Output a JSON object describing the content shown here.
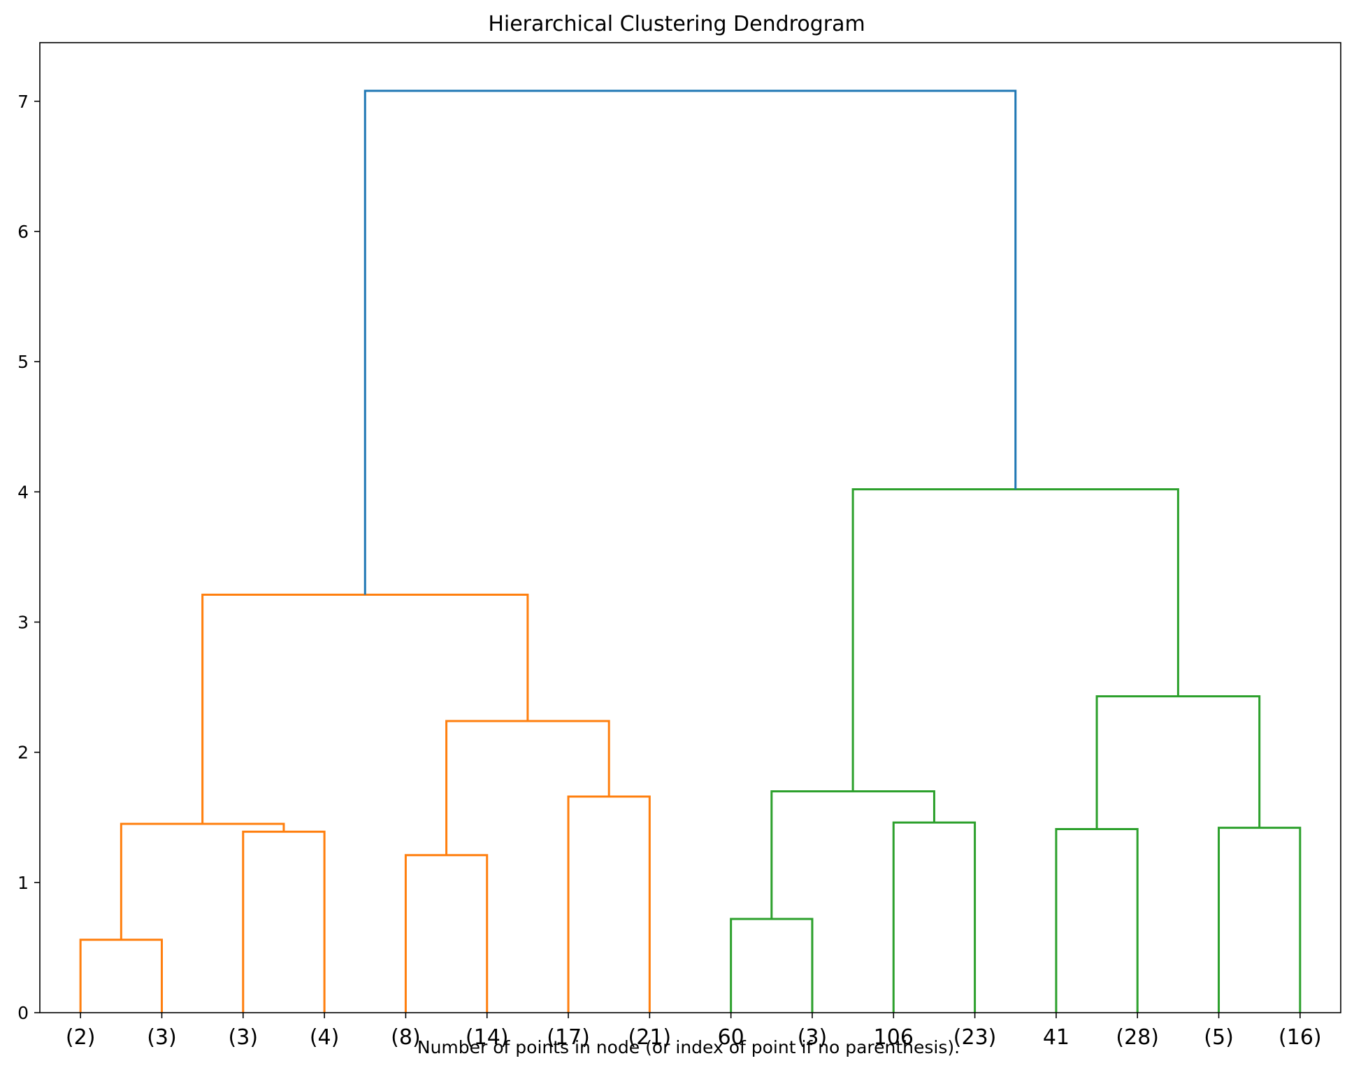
{
  "chart_data": {
    "type": "dendrogram",
    "title": "Hierarchical Clustering Dendrogram",
    "xlabel": "Number of points in node (or index of point if no parenthesis).",
    "ylabel": "",
    "ylim": [
      0,
      7.45
    ],
    "yticks": [
      0,
      1,
      2,
      3,
      4,
      5,
      6,
      7
    ],
    "grid": false,
    "legend": "none",
    "leaf_labels": [
      "(2)",
      "(3)",
      "(3)",
      "(4)",
      "(8)",
      "(14)",
      "(17)",
      "(21)",
      "60",
      "(3)",
      "106",
      "(23)",
      "41",
      "(28)",
      "(5)",
      "(16)"
    ],
    "merges": [
      {
        "left": 0,
        "right": 1,
        "height": 0.56,
        "color": "#ff7f0e"
      },
      {
        "left": 2,
        "right": 3,
        "height": 1.39,
        "color": "#ff7f0e"
      },
      {
        "left": "A",
        "right": "B",
        "height": 1.45,
        "color": "#ff7f0e",
        "id": "E"
      },
      {
        "left": 4,
        "right": 5,
        "height": 1.21,
        "color": "#ff7f0e",
        "id": "C"
      },
      {
        "left": 6,
        "right": 7,
        "height": 1.66,
        "color": "#ff7f0e",
        "id": "D"
      },
      {
        "left": "C",
        "right": "D",
        "height": 2.24,
        "color": "#ff7f0e",
        "id": "F"
      },
      {
        "left": "E",
        "right": "F",
        "height": 3.21,
        "color": "#ff7f0e",
        "id": "G"
      },
      {
        "left": 8,
        "right": 9,
        "height": 0.72,
        "color": "#2ca02c",
        "id": "H"
      },
      {
        "left": 10,
        "right": 11,
        "height": 1.46,
        "color": "#2ca02c",
        "id": "I"
      },
      {
        "left": "H",
        "right": "I",
        "height": 1.7,
        "color": "#2ca02c",
        "id": "J"
      },
      {
        "left": 12,
        "right": 13,
        "height": 1.41,
        "color": "#2ca02c",
        "id": "K"
      },
      {
        "left": 14,
        "right": 15,
        "height": 1.42,
        "color": "#2ca02c",
        "id": "L"
      },
      {
        "left": "K",
        "right": "L",
        "height": 2.43,
        "color": "#2ca02c",
        "id": "M"
      },
      {
        "left": "J",
        "right": "M",
        "height": 4.02,
        "color": "#2ca02c",
        "id": "N"
      },
      {
        "left": "G",
        "right": "N",
        "height": 7.08,
        "color": "#1f77b4",
        "id": "ROOT"
      }
    ]
  }
}
